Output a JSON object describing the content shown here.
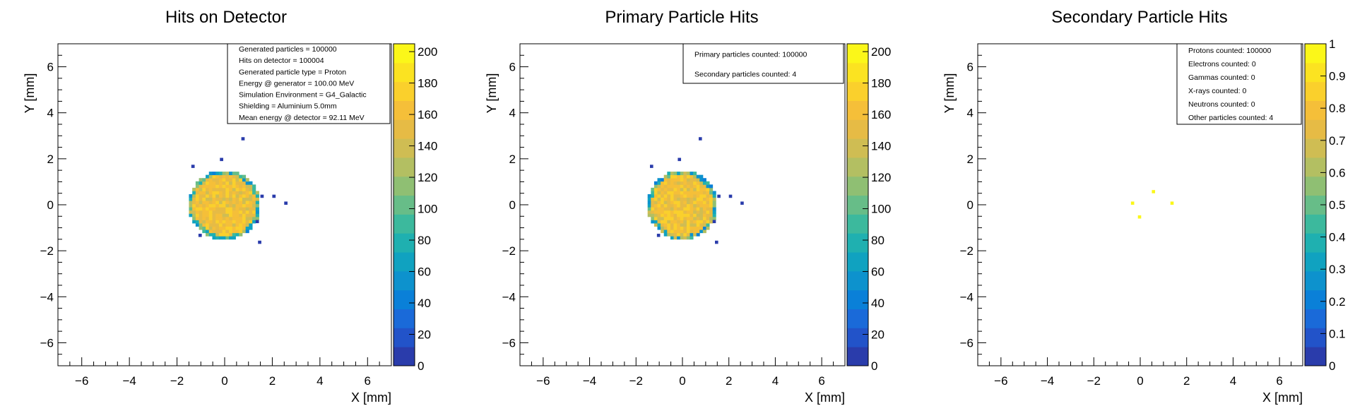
{
  "chart_data": [
    {
      "type": "heatmap",
      "title": "Hits on Detector",
      "xlabel": "X [mm]",
      "ylabel": "Y [mm]",
      "xlim": [
        -7,
        7
      ],
      "ylim": [
        -7,
        7
      ],
      "x_ticks": [
        "−6",
        "−4",
        "−2",
        "0",
        "2",
        "4",
        "6"
      ],
      "y_ticks": [
        "−6",
        "−4",
        "−2",
        "0",
        "2",
        "4",
        "6"
      ],
      "z_range": [
        0,
        205
      ],
      "z_ticks": [
        "0",
        "20",
        "40",
        "60",
        "80",
        "100",
        "120",
        "140",
        "160",
        "180",
        "200"
      ],
      "beam_spot": {
        "center": [
          0,
          0
        ],
        "radius_mm": 1.5,
        "typical_count": 160
      },
      "stray_hits": [
        [
          0.7,
          2.8
        ],
        [
          -1.4,
          1.6
        ],
        [
          -0.2,
          1.9
        ],
        [
          1.5,
          0.3
        ],
        [
          2.0,
          0.3
        ],
        [
          2.5,
          0.0
        ],
        [
          1.4,
          -1.7
        ],
        [
          -1.1,
          -1.4
        ],
        [
          1.3,
          -0.8
        ]
      ],
      "stats_box": {
        "lines": [
          "Generated particles = 100000",
          "Hits on detector = 100004",
          "Generated particle type = Proton",
          "Energy @ generator = 100.00 MeV",
          "Simulation Environment = G4_Galactic",
          "Shielding = Aluminium 5.0mm",
          "Mean energy @ detector = 92.11 MeV"
        ]
      }
    },
    {
      "type": "heatmap",
      "title": "Primary Particle Hits",
      "xlabel": "X [mm]",
      "ylabel": "Y [mm]",
      "xlim": [
        -7,
        7
      ],
      "ylim": [
        -7,
        7
      ],
      "x_ticks": [
        "−6",
        "−4",
        "−2",
        "0",
        "2",
        "4",
        "6"
      ],
      "y_ticks": [
        "−6",
        "−4",
        "−2",
        "0",
        "2",
        "4",
        "6"
      ],
      "z_range": [
        0,
        205
      ],
      "z_ticks": [
        "0",
        "20",
        "40",
        "60",
        "80",
        "100",
        "120",
        "140",
        "160",
        "180",
        "200"
      ],
      "beam_spot": {
        "center": [
          0,
          0
        ],
        "radius_mm": 1.5,
        "typical_count": 160
      },
      "stray_hits": [
        [
          0.7,
          2.8
        ],
        [
          -1.4,
          1.6
        ],
        [
          -0.2,
          1.9
        ],
        [
          1.5,
          0.3
        ],
        [
          2.0,
          0.3
        ],
        [
          2.5,
          0.0
        ],
        [
          1.4,
          -1.7
        ],
        [
          -1.1,
          -1.4
        ],
        [
          1.3,
          -0.8
        ]
      ],
      "stats_box": {
        "lines": [
          "Primary particles counted: 100000",
          "Secondary particles counted: 4"
        ]
      }
    },
    {
      "type": "heatmap",
      "title": "Secondary Particle Hits",
      "xlabel": "X [mm]",
      "ylabel": "Y [mm]",
      "xlim": [
        -7,
        7
      ],
      "ylim": [
        -7,
        7
      ],
      "x_ticks": [
        "−6",
        "−4",
        "−2",
        "0",
        "2",
        "4",
        "6"
      ],
      "y_ticks": [
        "−6",
        "−4",
        "−2",
        "0",
        "2",
        "4",
        "6"
      ],
      "z_range": [
        0,
        1
      ],
      "z_ticks": [
        "0",
        "0.1",
        "0.2",
        "0.3",
        "0.4",
        "0.5",
        "0.6",
        "0.7",
        "0.8",
        "0.9",
        "1"
      ],
      "hits": [
        [
          -0.4,
          0.0
        ],
        [
          0.5,
          0.5
        ],
        [
          1.3,
          0.0
        ],
        [
          -0.1,
          -0.6
        ]
      ],
      "hit_value": 1,
      "stats_box": {
        "lines": [
          "Protons counted: 100000",
          "Electrons counted: 0",
          "Gammas counted: 0",
          "X-rays counted: 0",
          "Neutrons counted: 0",
          "Other particles counted: 4"
        ]
      }
    }
  ],
  "palette": [
    "#2a3cab",
    "#2253c9",
    "#1a6ad9",
    "#0a80d8",
    "#0d92cd",
    "#10a2c0",
    "#1fb0b0",
    "#3cb99d",
    "#67bd88",
    "#8fbf73",
    "#b3bf62",
    "#cfbd53",
    "#e6bb45",
    "#f5bf39",
    "#fad02c",
    "#fbe321",
    "#fbf719"
  ]
}
